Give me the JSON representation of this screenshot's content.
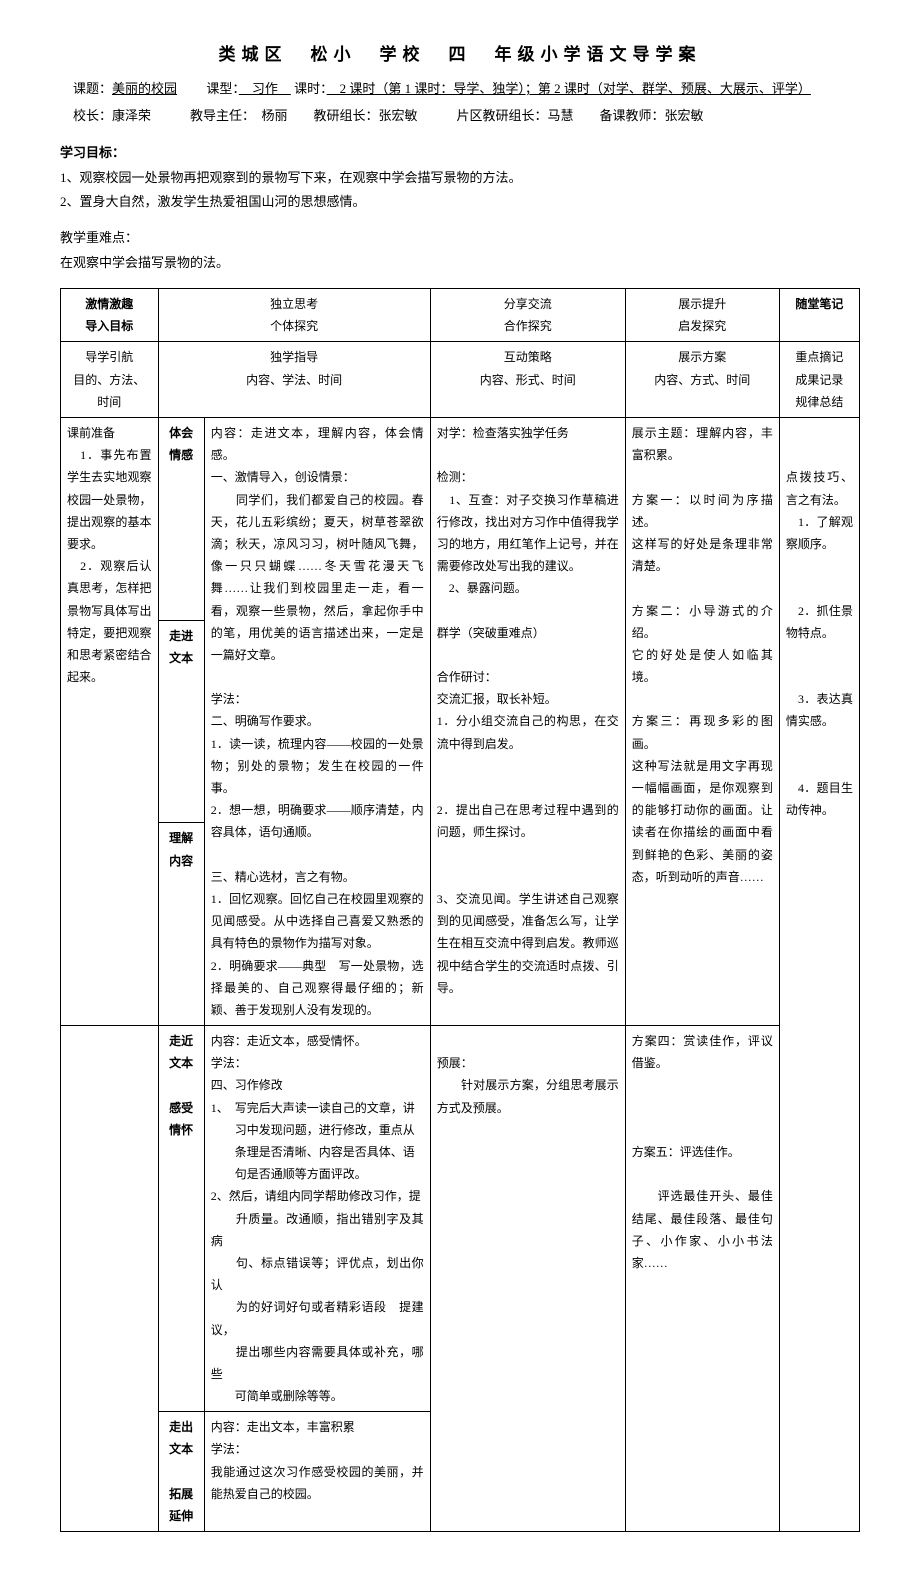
{
  "header": {
    "title": "类城区　松小　学校　四　年级小学语文导学案",
    "topic_label": "课题：",
    "topic_val": "美丽的校园",
    "type_label": "课型：",
    "type_val": "　习作　",
    "period_label": "课时：",
    "period_val": "　2 课时（第 1 课时：导学、独学）；第 2 课时（对学、群学、预展、大展示、评学）",
    "row2": "　校长：康泽荣　　　教导主任：　杨丽　　教研组长：张宏敏　　　片区教研组长：马慧　　备课教师：张宏敏"
  },
  "goals": {
    "head": "学习目标：",
    "g1": "1、观察校园一处景物再把观察到的景物写下来，在观察中学会描写景物的方法。",
    "g2": "2、置身大自然，激发学生热爱祖国山河的思想感情。"
  },
  "keypoint": {
    "head": "教学重难点：",
    "text": "在观察中学会描写景物的法。"
  },
  "table": {
    "h1a": "激情激趣",
    "h1b": "导入目标",
    "h2a": "独立思考",
    "h2b": "个体探究",
    "h3a": "分享交流",
    "h3b": "合作探究",
    "h4a": "展示提升",
    "h4b": "启发探究",
    "h5": "随堂笔记",
    "r2c1a": "导学引航",
    "r2c1b": "目的、方法、",
    "r2c1c": "时间",
    "r2c2a": "独学指导",
    "r2c2b": "内容、学法、时间",
    "r2c3a": "互动策略",
    "r2c3b": "内容、形式、时间",
    "r2c4a": "展示方案",
    "r2c4b": "内容、方式、时间",
    "r2c5a": "重点摘记",
    "r2c5b": "成果记录",
    "r2c5c": "规律总结",
    "colA": "课前准备\n　1．事先布置学生去实地观察校园一处景物，提出观察的基本要求。\n　2．观察后认真思考，怎样把景物写具体写出特定，要把观察和思考紧密结合起来。",
    "colB1": "体会\n情感",
    "colB2": "走进\n文本",
    "colB3": "理解\n内容",
    "colC_top": "内容：走进文本，理解内容，体会情感。\n一、激情导入，创设情景：\n　　同学们，我们都爱自己的校园。春天，花儿五彩缤纷；夏天，树草苍翠欲滴；秋天，凉风习习，树叶随风飞舞，像一只只蝴蝶……冬天雪花漫天飞舞……让我们到校园里走一走，看一看，观察一些景物，然后，拿起你手中的笔，用优美的语言描述出来，一定是一篇好文章。\n\n学法：\n二、明确写作要求。\n1．读一读，梳理内容——校园的一处景物；别处的景物；发生在校园的一件事。\n2．想一想，明确要求——顺序清楚，内容具体，语句通顺。\n\n三、精心选材，言之有物。\n1．回忆观察。回忆自己在校园里观察的见闻感受。从中选择自己喜爱又熟悉的具有特色的景物作为描写对象。\n2．明确要求——典型　写一处景物，选择最美的、自己观察得最仔细的；新颖、善于发现别人没有发现的。",
    "colD_top": "对学：检查落实独学任务\n\n检测：\n　1、互查：对子交换习作草稿进行修改，找出对方习作中值得我学习的地方，用红笔作上记号，并在需要修改处写出我的建议。\n　2、暴露问题。\n\n群学（突破重难点）\n\n合作研讨：\n交流汇报，取长补短。\n1．分小组交流自己的构思，在交流中得到启发。\n\n\n2．提出自己在思考过程中遇到的问题，师生探讨。\n\n\n3、交流见闻。学生讲述自己观察到的见闻感受，准备怎么写，让学生在相互交流中得到启发。教师巡视中结合学生的交流适时点拨、引导。",
    "colE_top": "展示主题：理解内容，丰富积累。\n\n方案一：以时间为序描述。\n这样写的好处是条理非常清楚。\n\n方案二：小导游式的介绍。\n它的好处是使人如临其境。\n\n方案三：再现多彩的图画。\n这种写法就是用文字再现一幅幅画面，是你观察到的能够打动你的画面。让读者在你描绘的画面中看到鲜艳的色彩、美丽的姿态，听到动听的声音……\n\n",
    "colF_top": "\n\n点拨技巧、言之有法。\n　1．了解观察顺序。\n\n\n　2．抓住景物特点。\n\n\n　3．表达真情实感。\n\n\n　4．题目生动传神。",
    "row4B": "走近\n文本\n\n感受\n情怀",
    "row4C": "内容：走近文本，感受情怀。\n学法：\n四、习作修改\n1、　写完后大声读一读自己的文章，讲\n　　习中发现问题，进行修改，重点从\n　　条理是否清晰、内容是否具体、语\n　　句是否通顺等方面评改。\n2、然后，请组内同学帮助修改习作，提\n　　升质量。改通顺，指出错别字及其病\n　　句、标点错误等；评优点，划出你认\n　　为的好词好句或者精彩语段　提建议，\n　　提出哪些内容需要具体或补充，哪些\n　　可简单或删除等等。",
    "row4D": "\n预展：\n　　针对展示方案，分组思考展示方式及预展。",
    "row4E": "方案四：赏读佳作，评议借鉴。\n\n\n\n方案五：评选佳作。\n\n　　评选最佳开头、最佳结尾、最佳段落、最佳句子、小作家、小小书法家……",
    "row5B": "走出\n文本\n\n拓展\n延伸",
    "row5C": "内容：走出文本，丰富积累\n学法：\n我能通过这次习作感受校园的美丽，并能热爱自己的校园。"
  }
}
